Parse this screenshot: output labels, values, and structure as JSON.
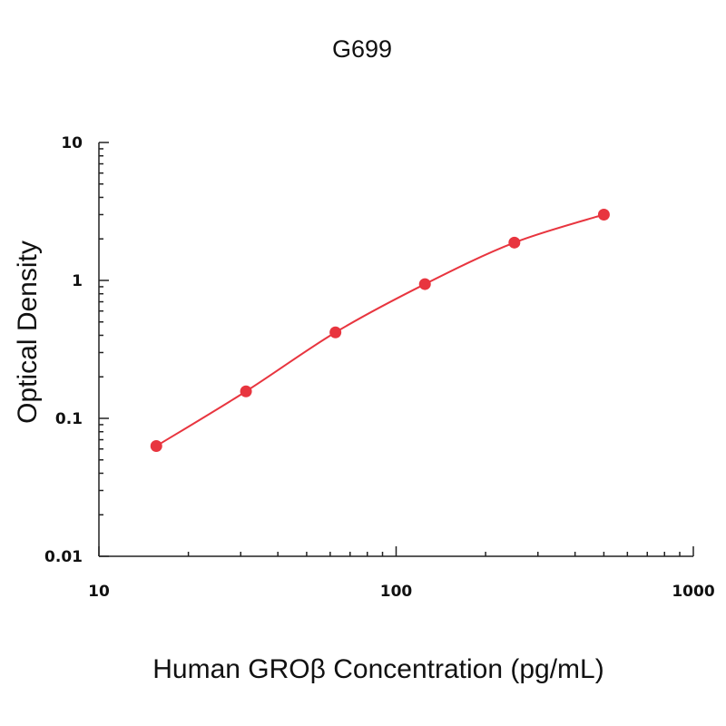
{
  "chart_data": {
    "type": "scatter",
    "title": "G699",
    "xlabel": "Human GROβ Concentration (pg/mL)",
    "ylabel": "Optical Density",
    "x_scale": "log",
    "y_scale": "log",
    "xlim": [
      10,
      1000
    ],
    "ylim": [
      0.01,
      10
    ],
    "x_ticks": [
      {
        "value": 10,
        "label": "10"
      },
      {
        "value": 100,
        "label": "100"
      },
      {
        "value": 1000,
        "label": "1000"
      }
    ],
    "y_ticks": [
      {
        "value": 0.01,
        "label": "0.01"
      },
      {
        "value": 0.1,
        "label": "0.1"
      },
      {
        "value": 1,
        "label": "1"
      },
      {
        "value": 10,
        "label": "10"
      }
    ],
    "grid": false,
    "legend": "none",
    "color": "#e8353f",
    "series": [
      {
        "x": [
          15.6,
          31.25,
          62.5,
          125,
          250,
          500
        ],
        "y": [
          0.063,
          0.157,
          0.42,
          0.94,
          1.88,
          3.0
        ],
        "fit": "smooth-curve"
      }
    ]
  }
}
